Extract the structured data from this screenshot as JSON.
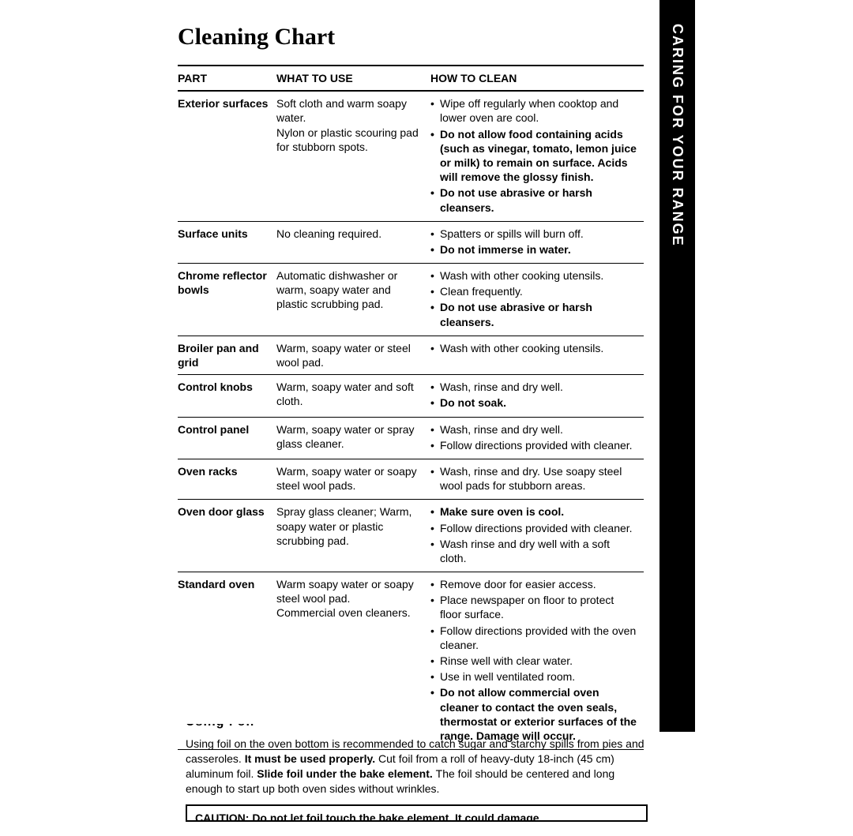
{
  "sideTab": "CARING FOR YOUR RANGE",
  "title": "Cleaning Chart",
  "headers": {
    "part": "PART",
    "what": "WHAT TO USE",
    "how": "HOW TO CLEAN"
  },
  "rows": [
    {
      "part": "Exterior surfaces",
      "what": [
        {
          "text": "Soft cloth and warm soapy water.",
          "bold": false
        },
        {
          "text": "Nylon or plastic scouring pad for stubborn spots.",
          "bold": false
        }
      ],
      "how": [
        {
          "text": "Wipe off regularly when cooktop and lower oven are cool.",
          "bold": false
        },
        {
          "text": "Do not allow food containing acids (such as vinegar, tomato, lemon juice or milk) to remain on surface. Acids will remove the glossy finish.",
          "bold": true
        },
        {
          "text": "Do not use abrasive or harsh cleansers.",
          "bold": true
        }
      ]
    },
    {
      "part": "Surface units",
      "what": [
        {
          "text": "No cleaning required.",
          "bold": false
        }
      ],
      "how": [
        {
          "text": "Spatters or spills will burn off.",
          "bold": false
        },
        {
          "text": "Do not immerse in water.",
          "bold": true
        }
      ]
    },
    {
      "part": "Chrome reflector bowls",
      "what": [
        {
          "text": "Automatic dishwasher or warm, soapy water and plastic scrubbing pad.",
          "bold": false
        }
      ],
      "how": [
        {
          "text": "Wash with other cooking utensils.",
          "bold": false
        },
        {
          "text": "Clean frequently.",
          "bold": false
        },
        {
          "text": "Do not use abrasive or harsh cleansers.",
          "bold": true
        }
      ]
    },
    {
      "part": "Broiler pan and grid",
      "what": [
        {
          "text": "Warm, soapy water or steel wool pad.",
          "bold": false
        }
      ],
      "how": [
        {
          "text": "Wash with other cooking utensils.",
          "bold": false
        }
      ]
    },
    {
      "part": "Control knobs",
      "what": [
        {
          "text": "Warm, soapy water and soft cloth.",
          "bold": false
        }
      ],
      "how": [
        {
          "text": "Wash, rinse and dry well.",
          "bold": false
        },
        {
          "text": "Do not soak.",
          "bold": true
        }
      ]
    },
    {
      "part": "Control panel",
      "what": [
        {
          "text": "Warm, soapy water or spray glass cleaner.",
          "bold": false
        }
      ],
      "how": [
        {
          "text": "Wash, rinse and dry well.",
          "bold": false
        },
        {
          "text": "Follow directions provided with cleaner.",
          "bold": false
        }
      ]
    },
    {
      "part": "Oven racks",
      "what": [
        {
          "text": "Warm, soapy water or soapy steel wool pads.",
          "bold": false
        }
      ],
      "how": [
        {
          "text": "Wash, rinse and dry. Use soapy steel wool pads for stubborn areas.",
          "bold": false
        }
      ]
    },
    {
      "part": "Oven door glass",
      "what": [
        {
          "text": "Spray glass cleaner; Warm, soapy water or plastic scrubbing pad.",
          "bold": false
        }
      ],
      "how": [
        {
          "text": "Make sure oven is cool.",
          "bold": true
        },
        {
          "text": "Follow directions provided with cleaner.",
          "bold": false
        },
        {
          "text": "Wash rinse and dry well with a soft cloth.",
          "bold": false
        }
      ]
    },
    {
      "part": "Standard oven",
      "what": [
        {
          "text": "Warm soapy water or soapy steel wool pad.",
          "bold": false
        },
        {
          "text": "Commercial oven cleaners.",
          "bold": false
        }
      ],
      "how": [
        {
          "text": "Remove door for easier access.",
          "bold": false
        },
        {
          "text": "Place newspaper on floor to protect floor surface.",
          "bold": false
        },
        {
          "text": "Follow directions provided with the oven cleaner.",
          "bold": false
        },
        {
          "text": "Rinse well with clear water.",
          "bold": false
        },
        {
          "text": "Use in well ventilated room.",
          "bold": false
        },
        {
          "text": "Do not allow commercial oven cleaner to contact the oven seals, thermostat or exterior surfaces of the range. Damage will occur.",
          "bold": true
        }
      ]
    }
  ],
  "foil": {
    "cutoffHeading": "Using Foil",
    "para_parts": [
      {
        "text": "Using foil on the oven bottom is recommended to catch sugar and starchy spills from pies and casseroles. ",
        "bold": false
      },
      {
        "text": "It must be used properly. ",
        "bold": true
      },
      {
        "text": "Cut foil from a roll of heavy-duty 18-inch (45 cm) aluminum foil. ",
        "bold": false
      },
      {
        "text": "Slide foil under the bake element. ",
        "bold": true
      },
      {
        "text": "The foil should be centered and long enough to start up both oven sides without wrinkles.",
        "bold": false
      }
    ],
    "caution": "CAUTION: Do not let foil touch the bake element. It could damage"
  }
}
